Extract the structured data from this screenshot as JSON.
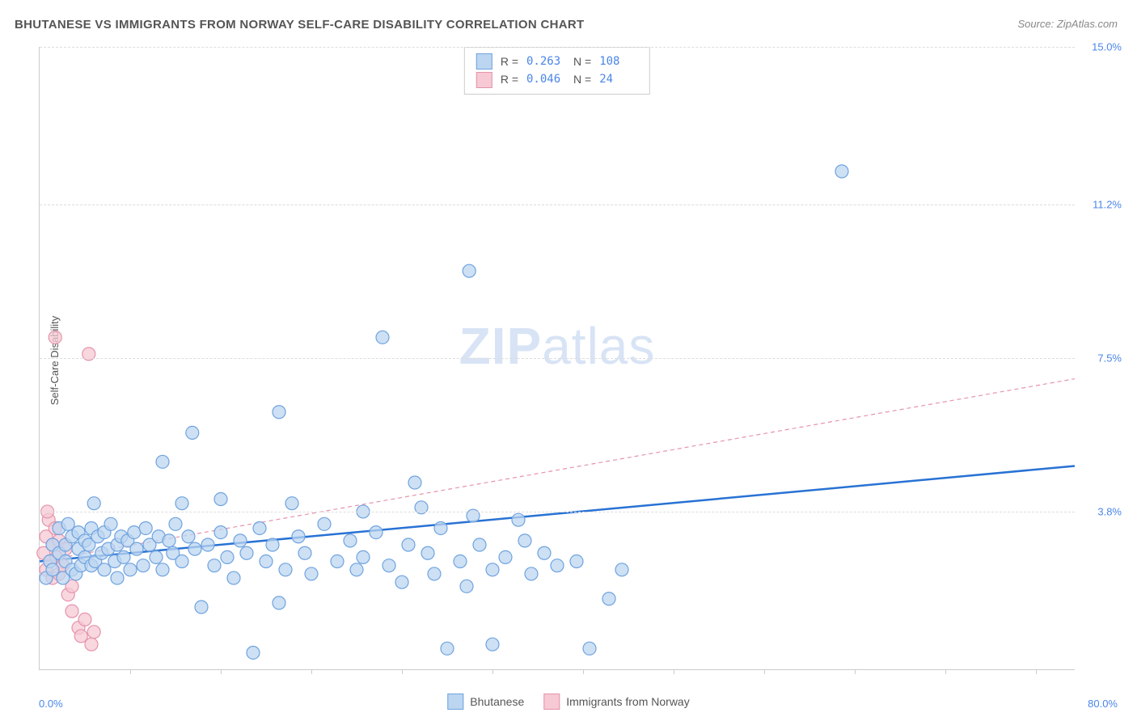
{
  "title": "BHUTANESE VS IMMIGRANTS FROM NORWAY SELF-CARE DISABILITY CORRELATION CHART",
  "source": "Source: ZipAtlas.com",
  "ylabel": "Self-Care Disability",
  "watermark_a": "ZIP",
  "watermark_b": "atlas",
  "chart": {
    "type": "scatter",
    "xlim": [
      0,
      80
    ],
    "ylim": [
      0,
      15
    ],
    "x_min_label": "0.0%",
    "x_max_label": "80.0%",
    "y_ticks": [
      {
        "v": 3.8,
        "label": "3.8%"
      },
      {
        "v": 7.5,
        "label": "7.5%"
      },
      {
        "v": 11.2,
        "label": "11.2%"
      },
      {
        "v": 15.0,
        "label": "15.0%"
      }
    ],
    "x_tick_positions": [
      7,
      14,
      21,
      28,
      35,
      42,
      49,
      56,
      63,
      70,
      77
    ],
    "background_color": "#ffffff",
    "grid_color": "#dddddd",
    "marker_radius": 8,
    "marker_stroke_width": 1.2,
    "series": [
      {
        "name": "Bhutanese",
        "fill": "#bcd5f0",
        "stroke": "#6fa3df",
        "r": 0.263,
        "n": 108,
        "trend": {
          "y_at_x0": 2.6,
          "y_at_xmax": 4.9,
          "stroke": "#2872d4",
          "width": 2.5,
          "dash": "none"
        },
        "points": [
          [
            0.5,
            2.2
          ],
          [
            0.8,
            2.6
          ],
          [
            1.0,
            3.0
          ],
          [
            1.0,
            2.4
          ],
          [
            1.5,
            2.8
          ],
          [
            1.5,
            3.4
          ],
          [
            1.8,
            2.2
          ],
          [
            2.0,
            3.0
          ],
          [
            2.0,
            2.6
          ],
          [
            2.2,
            3.5
          ],
          [
            2.5,
            2.4
          ],
          [
            2.5,
            3.2
          ],
          [
            2.8,
            2.3
          ],
          [
            3.0,
            2.9
          ],
          [
            3.0,
            3.3
          ],
          [
            3.2,
            2.5
          ],
          [
            3.5,
            3.1
          ],
          [
            3.5,
            2.7
          ],
          [
            3.8,
            3.0
          ],
          [
            4.0,
            2.5
          ],
          [
            4.0,
            3.4
          ],
          [
            4.3,
            2.6
          ],
          [
            4.5,
            3.2
          ],
          [
            4.8,
            2.8
          ],
          [
            5.0,
            2.4
          ],
          [
            5.0,
            3.3
          ],
          [
            5.3,
            2.9
          ],
          [
            5.5,
            3.5
          ],
          [
            5.8,
            2.6
          ],
          [
            6.0,
            3.0
          ],
          [
            6.0,
            2.2
          ],
          [
            6.3,
            3.2
          ],
          [
            6.5,
            2.7
          ],
          [
            6.8,
            3.1
          ],
          [
            7.0,
            2.4
          ],
          [
            7.3,
            3.3
          ],
          [
            7.5,
            2.9
          ],
          [
            8.0,
            2.5
          ],
          [
            8.2,
            3.4
          ],
          [
            8.5,
            3.0
          ],
          [
            9.0,
            2.7
          ],
          [
            9.2,
            3.2
          ],
          [
            9.5,
            2.4
          ],
          [
            10.0,
            3.1
          ],
          [
            10.3,
            2.8
          ],
          [
            10.5,
            3.5
          ],
          [
            11.0,
            2.6
          ],
          [
            11.5,
            3.2
          ],
          [
            12.0,
            2.9
          ],
          [
            12.5,
            1.5
          ],
          [
            13.0,
            3.0
          ],
          [
            13.5,
            2.5
          ],
          [
            14.0,
            3.3
          ],
          [
            14.5,
            2.7
          ],
          [
            15.0,
            2.2
          ],
          [
            15.5,
            3.1
          ],
          [
            16.0,
            2.8
          ],
          [
            16.5,
            0.4
          ],
          [
            17.0,
            3.4
          ],
          [
            17.5,
            2.6
          ],
          [
            18.0,
            3.0
          ],
          [
            18.5,
            1.6
          ],
          [
            19.0,
            2.4
          ],
          [
            20.0,
            3.2
          ],
          [
            20.5,
            2.8
          ],
          [
            21.0,
            2.3
          ],
          [
            22.0,
            3.5
          ],
          [
            23.0,
            2.6
          ],
          [
            24.0,
            3.1
          ],
          [
            24.5,
            2.4
          ],
          [
            25.0,
            2.7
          ],
          [
            26.0,
            3.3
          ],
          [
            27.0,
            2.5
          ],
          [
            28.0,
            2.1
          ],
          [
            28.5,
            3.0
          ],
          [
            29.0,
            4.5
          ],
          [
            30.0,
            2.8
          ],
          [
            30.5,
            2.3
          ],
          [
            31.0,
            3.4
          ],
          [
            31.5,
            0.5
          ],
          [
            32.5,
            2.6
          ],
          [
            33.0,
            2.0
          ],
          [
            34.0,
            3.0
          ],
          [
            35.0,
            2.4
          ],
          [
            35.0,
            0.6
          ],
          [
            36.0,
            2.7
          ],
          [
            37.5,
            3.1
          ],
          [
            38.0,
            2.3
          ],
          [
            39.0,
            2.8
          ],
          [
            40.0,
            2.5
          ],
          [
            41.5,
            2.6
          ],
          [
            42.5,
            0.5
          ],
          [
            44.0,
            1.7
          ],
          [
            45.0,
            2.4
          ],
          [
            4.2,
            4.0
          ],
          [
            9.5,
            5.0
          ],
          [
            11.8,
            5.7
          ],
          [
            18.5,
            6.2
          ],
          [
            26.5,
            8.0
          ],
          [
            33.2,
            9.6
          ],
          [
            62.0,
            12.0
          ],
          [
            11.0,
            4.0
          ],
          [
            14.0,
            4.1
          ],
          [
            19.5,
            4.0
          ],
          [
            25.0,
            3.8
          ],
          [
            29.5,
            3.9
          ],
          [
            33.5,
            3.7
          ],
          [
            37.0,
            3.6
          ]
        ]
      },
      {
        "name": "Immigrants from Norway",
        "fill": "#f6c9d4",
        "stroke": "#e593ab",
        "r": 0.046,
        "n": 24,
        "trend": {
          "y_at_x0": 2.6,
          "y_at_xmax": 7.0,
          "stroke": "#e593ab",
          "width": 1.2,
          "dash": "5,4"
        },
        "points": [
          [
            0.3,
            2.8
          ],
          [
            0.5,
            2.4
          ],
          [
            0.5,
            3.2
          ],
          [
            0.7,
            3.6
          ],
          [
            0.8,
            2.6
          ],
          [
            1.0,
            3.0
          ],
          [
            1.0,
            2.2
          ],
          [
            1.2,
            3.4
          ],
          [
            1.3,
            2.7
          ],
          [
            1.5,
            2.3
          ],
          [
            1.5,
            3.1
          ],
          [
            1.8,
            2.5
          ],
          [
            2.0,
            2.9
          ],
          [
            2.2,
            1.8
          ],
          [
            2.5,
            2.0
          ],
          [
            2.5,
            1.4
          ],
          [
            3.0,
            1.0
          ],
          [
            3.2,
            0.8
          ],
          [
            3.5,
            1.2
          ],
          [
            4.0,
            0.6
          ],
          [
            4.2,
            0.9
          ],
          [
            1.2,
            8.0
          ],
          [
            3.8,
            7.6
          ],
          [
            0.6,
            3.8
          ]
        ]
      }
    ],
    "stats_labels": {
      "r": "R =",
      "n": "N ="
    }
  },
  "legend_series1": "Bhutanese",
  "legend_series2": "Immigrants from Norway"
}
